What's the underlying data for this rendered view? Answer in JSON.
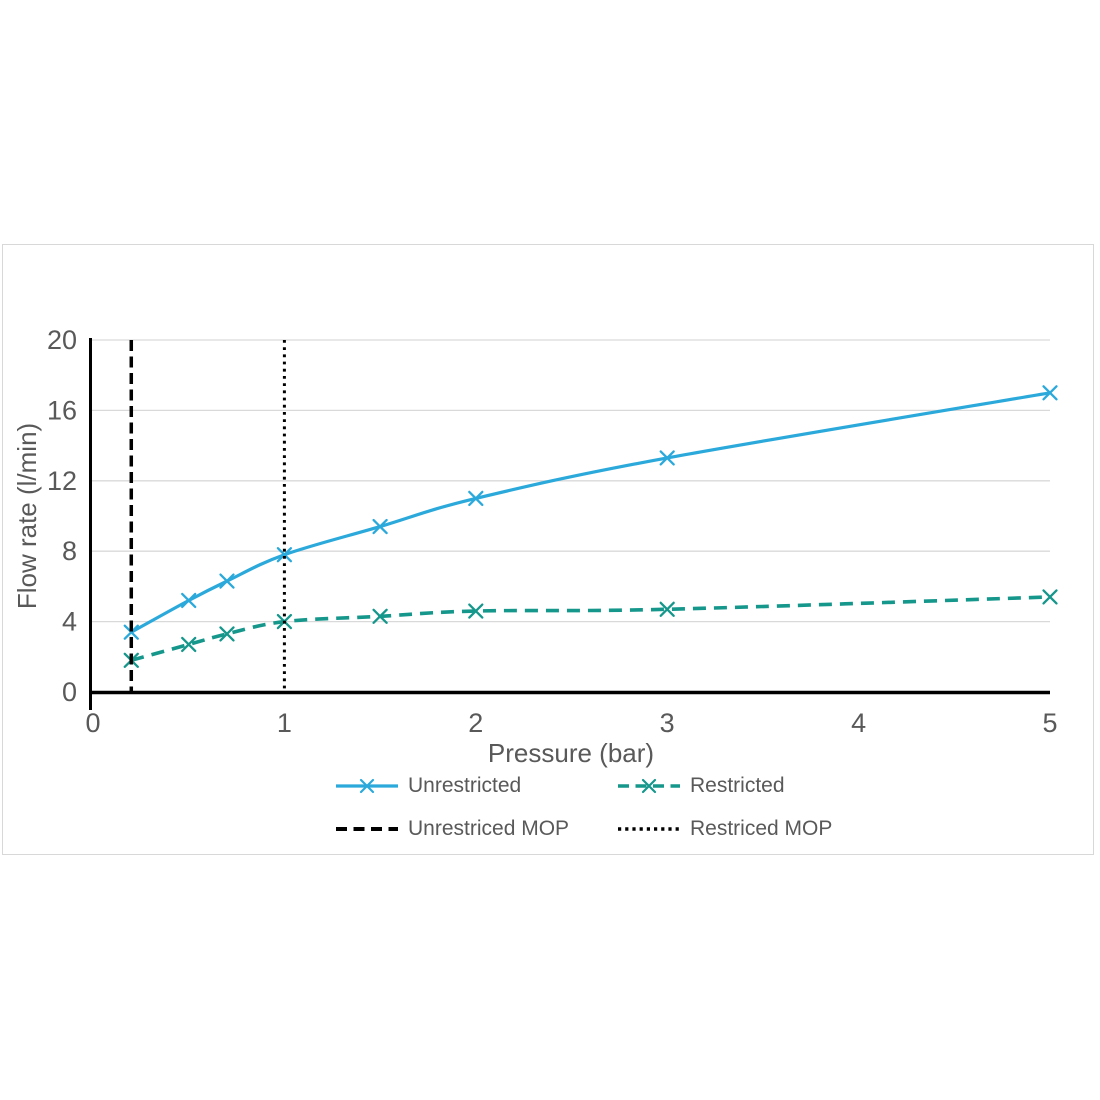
{
  "chart_data": {
    "type": "line",
    "title": "",
    "xlabel": "Pressure (bar)",
    "ylabel": "Flow rate (l/min)",
    "xlim": [
      0,
      5
    ],
    "ylim": [
      0,
      20
    ],
    "x_ticks": [
      0,
      1,
      2,
      3,
      4,
      5
    ],
    "y_ticks": [
      0,
      4,
      8,
      12,
      16,
      20
    ],
    "grid": "horizontal-y",
    "legend_position": "bottom",
    "x": [
      0.2,
      0.5,
      0.7,
      1,
      1.5,
      2,
      3,
      5
    ],
    "series": [
      {
        "name": "Unrestricted",
        "color": "#2BA9DB",
        "line_style": "solid",
        "marker": "x",
        "values": [
          3.4,
          5.2,
          6.3,
          7.8,
          9.4,
          11.0,
          13.3,
          17.0
        ]
      },
      {
        "name": "Restricted",
        "color": "#15978C",
        "line_style": "dashed",
        "marker": "x",
        "values": [
          1.8,
          2.7,
          3.3,
          4.0,
          4.3,
          4.6,
          4.7,
          5.4
        ]
      }
    ],
    "vlines": [
      {
        "name": "Unrestriced MOP",
        "x": 0.2,
        "color": "#000000",
        "line_style": "dashed"
      },
      {
        "name": "Restriced MOP",
        "x": 1.0,
        "color": "#000000",
        "line_style": "dotted"
      }
    ]
  },
  "colors": {
    "text": "#595959",
    "gridline": "#D9D9D9",
    "axis": "#000000",
    "frame_border": "#D8D8D8",
    "background": "#FFFFFF"
  }
}
